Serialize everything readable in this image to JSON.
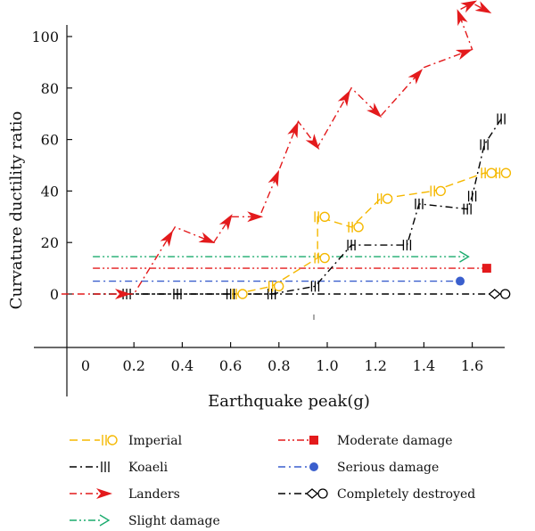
{
  "chart_data": {
    "type": "line",
    "title": "",
    "xlabel": "Earthquake peak(g)",
    "ylabel": "Curvature ductility ratio",
    "xlim": [
      -0.2,
      1.75
    ],
    "ylim": [
      -20,
      110
    ],
    "x_ticks": [
      0,
      0.2,
      0.4,
      0.6,
      0.8,
      1.0,
      1.2,
      1.4,
      1.6
    ],
    "x_tick_labels": [
      "0",
      "0.2",
      "0.4",
      "0.6",
      "0.8",
      "1.0",
      "1.2",
      "1.4",
      "1.6"
    ],
    "y_ticks": [
      0,
      20,
      40,
      60,
      80,
      100
    ],
    "y_tick_labels": [
      "0",
      "20",
      "40",
      "60",
      "80",
      "100"
    ],
    "grid": false,
    "legend_placement": "bottom",
    "series": [
      {
        "name": "Imperial",
        "color": "#f5b800",
        "style": "dashed",
        "marker": "bar-circle",
        "x": [
          0.62,
          0.77,
          0.96,
          0.96,
          1.1,
          1.22,
          1.44,
          1.65,
          1.71
        ],
        "y": [
          0,
          3,
          14,
          30,
          26,
          37,
          40,
          47,
          47
        ]
      },
      {
        "name": "Koaeli",
        "color": "#000000",
        "style": "dash-dot",
        "marker": "triple-bar",
        "x": [
          0.17,
          0.38,
          0.6,
          0.77,
          0.95,
          1.1,
          1.33,
          1.38,
          1.58,
          1.6,
          1.65,
          1.72
        ],
        "y": [
          0,
          0,
          0,
          0,
          3,
          19,
          19,
          35,
          33,
          38,
          58,
          68
        ]
      },
      {
        "name": "Landers",
        "color": "#e31a1c",
        "style": "dash-dot",
        "marker": "arrow",
        "x": [
          -0.1,
          0.2,
          0.37,
          0.53,
          0.6,
          0.72,
          0.8,
          0.88,
          0.96,
          1.1,
          1.22,
          1.4,
          1.6,
          1.54,
          1.6,
          1.66
        ],
        "y": [
          0,
          0,
          26,
          20,
          30,
          30,
          48,
          67,
          57,
          80,
          69,
          88,
          95,
          110,
          113,
          110
        ]
      },
      {
        "name": "Slight damage",
        "color": "#1aab6d",
        "style": "dash-dot-dot",
        "marker": "open-arrow",
        "x": [
          0.03,
          1.57
        ],
        "y": [
          14.5,
          14.5
        ]
      },
      {
        "name": "Moderate damage",
        "color": "#e31a1c",
        "style": "dash-dot-dot",
        "marker": "square",
        "x": [
          0.03,
          1.66
        ],
        "y": [
          10,
          10
        ]
      },
      {
        "name": "Serious damage",
        "color": "#3a5fcd",
        "style": "dash-dot",
        "marker": "circle",
        "x": [
          0.03,
          1.55
        ],
        "y": [
          5,
          5
        ]
      },
      {
        "name": "Completely destroyed",
        "color": "#000000",
        "style": "dash-dot",
        "marker": "diamond-circle",
        "x": [
          0.03,
          1.7
        ],
        "y": [
          0,
          0
        ]
      }
    ]
  }
}
